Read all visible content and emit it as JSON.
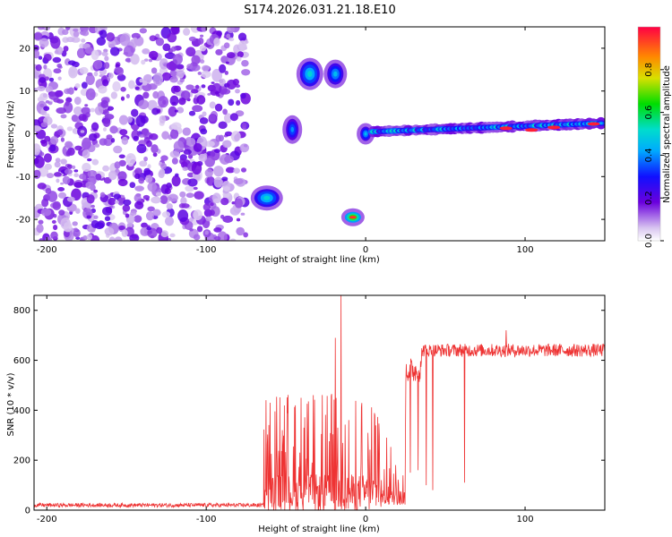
{
  "figure_title": "S174.2026.031.21.18.E10",
  "chart_data": [
    {
      "type": "heatmap",
      "title": "S174.2026.031.21.18.E10",
      "xlabel": "Height of straight line (km)",
      "ylabel": "Frequency (Hz)",
      "xlim": [
        -208,
        150
      ],
      "ylim": [
        -25,
        25
      ],
      "xticks": [
        -200,
        -100,
        0,
        100
      ],
      "yticks": [
        -20,
        -10,
        0,
        10,
        20
      ],
      "colorbar": {
        "label": "Normalized spectral amplitude",
        "range": [
          0,
          1
        ],
        "ticks": [
          0.0,
          0.2,
          0.4,
          0.6,
          0.8
        ]
      },
      "features": [
        {
          "name": "noise-field",
          "x_range": [
            -208,
            -75
          ],
          "y_range": [
            -25,
            25
          ],
          "amplitude": 0.2
        },
        {
          "name": "blob-a",
          "x": -62,
          "y": -15,
          "amplitude": 0.5
        },
        {
          "name": "blob-b",
          "x": -46,
          "y": 1,
          "amplitude": 0.4
        },
        {
          "name": "blob-c",
          "x": -35,
          "y": 14,
          "amplitude": 0.5
        },
        {
          "name": "blob-d",
          "x": -19,
          "y": 14,
          "amplitude": 0.45
        },
        {
          "name": "blob-e",
          "x": -8,
          "y": -19.5,
          "amplitude": 0.8
        },
        {
          "name": "line-onset",
          "x": 0,
          "y": 0,
          "amplitude": 0.45
        },
        {
          "name": "trace",
          "x_range": [
            5,
            150
          ],
          "y_start": 0.5,
          "y_end": 2.5,
          "amplitude": 0.55
        }
      ]
    },
    {
      "type": "line",
      "title": "",
      "xlabel": "Height of straight line (km)",
      "ylabel": "SNR (10 * v/v)",
      "xlim": [
        -208,
        150
      ],
      "ylim": [
        0,
        860
      ],
      "xticks": [
        -200,
        -100,
        0,
        100
      ],
      "yticks": [
        0,
        200,
        400,
        600,
        800
      ],
      "color": "#ee3333",
      "segments": [
        {
          "x_range": [
            -208,
            -64
          ],
          "level": 20,
          "noise": 12
        },
        {
          "x_range": [
            -64,
            10
          ],
          "level": 170,
          "noise": 150
        },
        {
          "x_range": [
            10,
            25
          ],
          "level": 80,
          "noise": 80
        },
        {
          "x_range": [
            25,
            35
          ],
          "level": 560,
          "noise": 80
        },
        {
          "x_range": [
            35,
            150
          ],
          "level": 640,
          "noise": 40
        }
      ],
      "spikes": [
        {
          "x": -15.5,
          "y": 860
        },
        {
          "x": -19,
          "y": 690
        },
        {
          "x": 88,
          "y": 720
        }
      ],
      "dips": [
        {
          "x": 28,
          "y": 150
        },
        {
          "x": 33,
          "y": 160
        },
        {
          "x": 38,
          "y": 100
        },
        {
          "x": 42,
          "y": 80
        },
        {
          "x": 62,
          "y": 110
        }
      ]
    }
  ]
}
